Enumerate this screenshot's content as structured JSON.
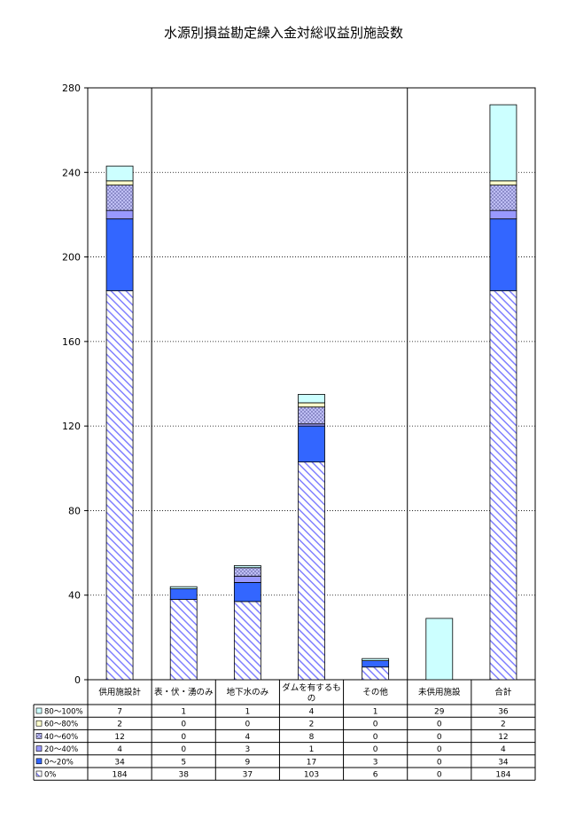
{
  "chart_data": {
    "type": "bar",
    "stacked": true,
    "title": "水源別損益勘定繰入金対総収益別施設数",
    "categories": [
      "供用施設計",
      "表・伏・湧のみ",
      "地下水のみ",
      "ダムを有するもの",
      "その他",
      "未供用施設",
      "合計"
    ],
    "series": [
      {
        "name": "0%",
        "values": [
          184,
          38,
          37,
          103,
          6,
          0,
          184
        ],
        "color": "#9999ff",
        "pattern": "diagonal-hatch"
      },
      {
        "name": "0～20%",
        "values": [
          34,
          5,
          9,
          17,
          3,
          0,
          34
        ],
        "color": "#3366ff",
        "pattern": "solid"
      },
      {
        "name": "20～40%",
        "values": [
          4,
          0,
          3,
          1,
          0,
          0,
          4
        ],
        "color": "#9999ff",
        "pattern": "solid"
      },
      {
        "name": "40～60%",
        "values": [
          12,
          0,
          4,
          8,
          0,
          0,
          12
        ],
        "color": "#ccccff",
        "pattern": "crosshatch"
      },
      {
        "name": "60～80%",
        "values": [
          2,
          0,
          0,
          2,
          0,
          0,
          2
        ],
        "color": "#ffffcc",
        "pattern": "solid"
      },
      {
        "name": "80～100%",
        "values": [
          7,
          1,
          1,
          4,
          1,
          29,
          36
        ],
        "color": "#ccffff",
        "pattern": "solid"
      }
    ],
    "ylim": [
      0,
      280
    ],
    "yticks": [
      0,
      40,
      80,
      120,
      160,
      200,
      240,
      280
    ],
    "grid": true,
    "data_table": true,
    "group_separators_after": [
      0,
      4
    ]
  }
}
